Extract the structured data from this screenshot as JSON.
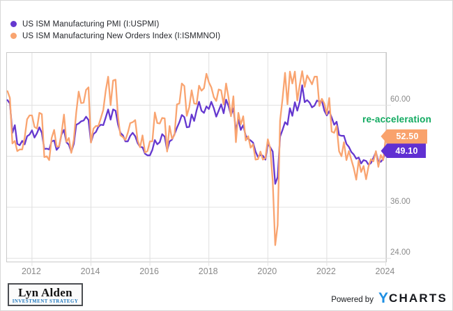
{
  "colors": {
    "pmi_purple": "#6538cf",
    "orders_orange": "#f9a470",
    "badge_purple": "#6030d2",
    "badge_orange": "#f9a26c",
    "annotation_green": "#0fa95f",
    "gridline": "#e0e0e0",
    "plot_border": "#c9c9c9",
    "axis_text": "#8a8a8a",
    "ycharts_blue": "#1e8fe3"
  },
  "legend": {
    "items": [
      {
        "label": "US ISM Manufacturing PMI (I:USPMI)"
      },
      {
        "label": "US ISM Manufacturing New Orders Index (I:ISMMNOI)"
      }
    ]
  },
  "annotation_label": "re-acceleration",
  "branding": {
    "name": "Lyn Alden",
    "subtitle": "INVESTMENT STRATEGY",
    "subtitle_color": "#1b75bc",
    "powered_by": "Powered by",
    "ycharts_y": "Y",
    "ycharts_charts": "CHARTS"
  },
  "chart_data": {
    "type": "line",
    "frequency": "monthly",
    "x_start": {
      "year": 2011,
      "month": 3
    },
    "x_end": {
      "year": 2024,
      "month": 1
    },
    "xlim": [
      2011.15,
      2024.06
    ],
    "ylim": [
      22.9,
      72.3
    ],
    "x_gridlines": [
      2012,
      2014,
      2016,
      2018,
      2020,
      2022,
      2024
    ],
    "y_gridlines": [
      24,
      36,
      48,
      60
    ],
    "x_ticks": [
      {
        "value": 2012,
        "label": "2012"
      },
      {
        "value": 2014,
        "label": "2014"
      },
      {
        "value": 2016,
        "label": "2016"
      },
      {
        "value": 2018,
        "label": "2018"
      },
      {
        "value": 2020,
        "label": "2020"
      },
      {
        "value": 2022,
        "label": "2022"
      },
      {
        "value": 2024,
        "label": "2024"
      }
    ],
    "y_ticks": [
      {
        "value": 60,
        "label": "60.00"
      },
      {
        "value": 36,
        "label": "36.00"
      },
      {
        "value": 24,
        "label": "24.00"
      }
    ],
    "series": [
      {
        "name": "US ISM Manufacturing PMI (I:USPMI)",
        "color": "#6538cf",
        "badge_color": "#6030d2",
        "last_value": 49.1,
        "data_label": "49.10",
        "values": [
          61.2,
          60.4,
          53.5,
          55.3,
          50.9,
          50.6,
          51.6,
          50.8,
          52.7,
          53.1,
          54.1,
          52.4,
          53.4,
          54.8,
          53.5,
          49.7,
          49.8,
          49.6,
          51.5,
          51.7,
          49.5,
          50.2,
          53.1,
          54.2,
          51.3,
          50.7,
          49.0,
          50.9,
          55.4,
          55.7,
          56.2,
          56.4,
          57.3,
          56.5,
          51.3,
          53.2,
          53.7,
          54.9,
          55.4,
          55.3,
          57.1,
          59.0,
          56.6,
          59.0,
          58.7,
          55.5,
          53.5,
          52.9,
          51.5,
          51.5,
          52.8,
          53.5,
          52.7,
          51.1,
          50.2,
          50.1,
          48.6,
          48.2,
          48.2,
          49.5,
          51.8,
          50.8,
          51.3,
          53.2,
          52.6,
          49.4,
          51.5,
          51.9,
          53.2,
          54.7,
          56.0,
          57.7,
          57.2,
          54.8,
          54.9,
          57.8,
          56.3,
          58.8,
          60.8,
          58.7,
          58.2,
          59.7,
          59.1,
          60.8,
          59.3,
          57.3,
          58.7,
          60.2,
          58.1,
          61.3,
          59.8,
          57.7,
          59.3,
          54.1,
          56.6,
          54.2,
          55.3,
          52.8,
          52.1,
          51.7,
          51.2,
          49.1,
          47.8,
          48.3,
          48.1,
          47.2,
          50.9,
          50.1,
          49.1,
          41.5,
          43.1,
          52.6,
          54.2,
          56.0,
          55.4,
          59.3,
          57.5,
          60.7,
          58.7,
          60.8,
          64.7,
          60.7,
          61.2,
          60.6,
          59.5,
          59.9,
          61.1,
          60.8,
          61.1,
          58.7,
          57.6,
          58.6,
          57.1,
          55.4,
          56.1,
          53.0,
          52.8,
          52.8,
          50.9,
          50.2,
          49.0,
          48.4,
          47.4,
          47.7,
          46.3,
          47.1,
          46.9,
          46.0,
          46.4,
          47.6,
          49.0,
          46.7,
          46.7,
          47.4,
          49.1
        ]
      },
      {
        "name": "US ISM Manufacturing New Orders Index (I:ISMMNOI)",
        "color": "#f9a470",
        "badge_color": "#f9a26c",
        "last_value": 52.5,
        "data_label": "52.50",
        "values": [
          63.3,
          61.7,
          51.0,
          51.6,
          49.2,
          49.6,
          49.6,
          52.4,
          56.7,
          57.6,
          57.6,
          54.9,
          54.5,
          58.2,
          57.9,
          47.8,
          48.0,
          47.1,
          52.3,
          54.2,
          50.3,
          50.3,
          53.3,
          57.8,
          51.4,
          52.3,
          48.8,
          51.9,
          58.3,
          63.2,
          60.5,
          60.6,
          63.6,
          64.2,
          51.2,
          54.5,
          55.1,
          55.1,
          56.9,
          58.9,
          63.4,
          66.7,
          60.0,
          65.8,
          66.0,
          57.3,
          52.9,
          52.5,
          51.8,
          53.5,
          55.8,
          56.0,
          56.5,
          51.7,
          50.1,
          52.9,
          48.9,
          49.2,
          51.5,
          51.5,
          58.3,
          55.8,
          55.7,
          57.0,
          56.9,
          49.1,
          55.1,
          52.1,
          53.0,
          60.2,
          60.4,
          65.1,
          64.5,
          57.5,
          59.5,
          63.5,
          60.4,
          60.3,
          64.6,
          63.4,
          64.0,
          67.4,
          65.4,
          64.2,
          61.9,
          61.0,
          63.7,
          63.5,
          60.2,
          65.1,
          61.8,
          57.4,
          62.1,
          51.3,
          58.2,
          55.5,
          57.4,
          51.7,
          52.7,
          50.0,
          50.8,
          47.2,
          47.3,
          49.1,
          47.2,
          47.6,
          52.0,
          49.8,
          42.2,
          27.1,
          31.8,
          56.4,
          61.5,
          67.6,
          60.2,
          67.9,
          65.1,
          67.9,
          61.1,
          64.8,
          68.0,
          64.3,
          67.0,
          66.0,
          64.9,
          66.7,
          66.7,
          59.8,
          61.5,
          60.4,
          57.9,
          61.7,
          53.8,
          53.5,
          55.1,
          49.2,
          48.0,
          51.3,
          47.1,
          49.2,
          47.2,
          45.2,
          42.5,
          47.0,
          44.3,
          45.7,
          42.6,
          45.6,
          47.3,
          46.8,
          49.2,
          45.5,
          48.3,
          47.1,
          52.5
        ]
      }
    ]
  }
}
